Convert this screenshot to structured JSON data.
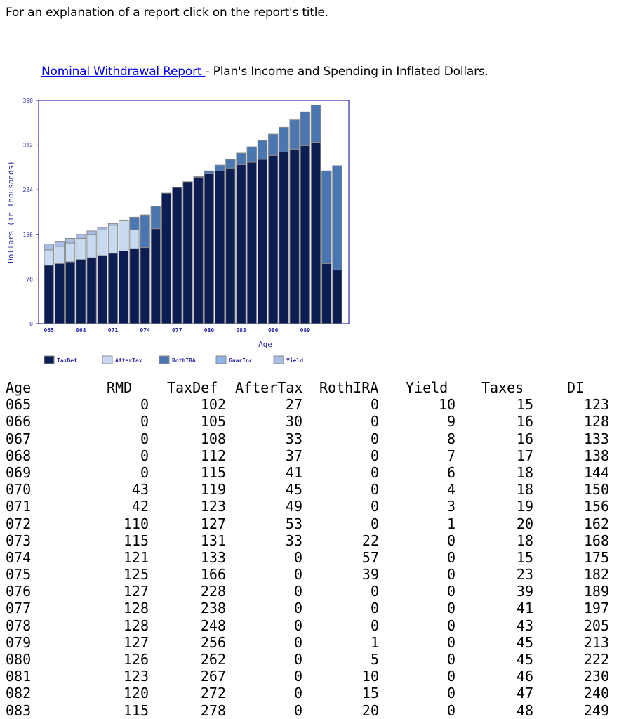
{
  "intro": "For an explanation of a report click on the report's title.",
  "report": {
    "link_label": "Nominal Withdrawal Report ",
    "description": "- Plan's Income and Spending in Inflated Dollars."
  },
  "colors": {
    "TaxDef": "#0b1d52",
    "AfterTax": "#c8daf0",
    "RothIRA": "#4a77b2",
    "GuarInc": "#8fb4ea",
    "Yield": "#a9bde9",
    "axis": "#2a2aa8"
  },
  "chart_data": {
    "type": "bar",
    "stacked": true,
    "xlabel": "Age",
    "ylabel": "Dollars (in Thousands)",
    "ylim": [
      0,
      390
    ],
    "yticks": [
      "0",
      "78",
      "156",
      "234",
      "312",
      "390"
    ],
    "xticks": [
      "065",
      "068",
      "071",
      "074",
      "077",
      "080",
      "083",
      "086",
      "089"
    ],
    "legend_position": "bottom",
    "categories": [
      "065",
      "066",
      "067",
      "068",
      "069",
      "070",
      "071",
      "072",
      "073",
      "074",
      "075",
      "076",
      "077",
      "078",
      "079",
      "080",
      "081",
      "082",
      "083",
      "084",
      "085",
      "086",
      "087",
      "088",
      "089",
      "090",
      "091",
      "092"
    ],
    "series": [
      {
        "name": "TaxDef",
        "values": [
          102,
          105,
          108,
          112,
          115,
          119,
          123,
          127,
          131,
          133,
          166,
          228,
          238,
          248,
          256,
          262,
          267,
          272,
          278,
          282,
          287,
          294,
          300,
          305,
          311,
          317,
          105,
          94
        ]
      },
      {
        "name": "AfterTax",
        "values": [
          27,
          30,
          33,
          37,
          41,
          45,
          49,
          53,
          33,
          0,
          0,
          0,
          0,
          0,
          0,
          0,
          0,
          0,
          0,
          0,
          0,
          0,
          0,
          0,
          0,
          0,
          0,
          0
        ]
      },
      {
        "name": "RothIRA",
        "values": [
          0,
          0,
          0,
          0,
          0,
          0,
          0,
          0,
          22,
          57,
          39,
          0,
          0,
          0,
          1,
          5,
          10,
          15,
          20,
          27,
          33,
          37,
          43,
          51,
          59,
          65,
          162,
          182
        ]
      },
      {
        "name": "GuarInc",
        "values": [
          0,
          0,
          0,
          0,
          0,
          0,
          0,
          0,
          0,
          0,
          0,
          0,
          0,
          0,
          0,
          0,
          0,
          0,
          0,
          0,
          0,
          0,
          0,
          0,
          0,
          0,
          0,
          0
        ]
      },
      {
        "name": "Yield",
        "values": [
          10,
          9,
          8,
          7,
          6,
          4,
          3,
          1,
          0,
          0,
          0,
          0,
          0,
          0,
          0,
          0,
          0,
          0,
          0,
          0,
          0,
          0,
          0,
          0,
          0,
          0,
          0,
          0
        ]
      }
    ]
  },
  "table": {
    "headers": [
      "Age",
      "RMD",
      "TaxDef",
      "AfterTax",
      "RothIRA",
      "Yield",
      "Taxes",
      "DI"
    ],
    "rows": [
      [
        "065",
        "0",
        "102",
        "27",
        "0",
        "10",
        "15",
        "123"
      ],
      [
        "066",
        "0",
        "105",
        "30",
        "0",
        "9",
        "16",
        "128"
      ],
      [
        "067",
        "0",
        "108",
        "33",
        "0",
        "8",
        "16",
        "133"
      ],
      [
        "068",
        "0",
        "112",
        "37",
        "0",
        "7",
        "17",
        "138"
      ],
      [
        "069",
        "0",
        "115",
        "41",
        "0",
        "6",
        "18",
        "144"
      ],
      [
        "070",
        "43",
        "119",
        "45",
        "0",
        "4",
        "18",
        "150"
      ],
      [
        "071",
        "42",
        "123",
        "49",
        "0",
        "3",
        "19",
        "156"
      ],
      [
        "072",
        "110",
        "127",
        "53",
        "0",
        "1",
        "20",
        "162"
      ],
      [
        "073",
        "115",
        "131",
        "33",
        "22",
        "0",
        "18",
        "168"
      ],
      [
        "074",
        "121",
        "133",
        "0",
        "57",
        "0",
        "15",
        "175"
      ],
      [
        "075",
        "125",
        "166",
        "0",
        "39",
        "0",
        "23",
        "182"
      ],
      [
        "076",
        "127",
        "228",
        "0",
        "0",
        "0",
        "39",
        "189"
      ],
      [
        "077",
        "128",
        "238",
        "0",
        "0",
        "0",
        "41",
        "197"
      ],
      [
        "078",
        "128",
        "248",
        "0",
        "0",
        "0",
        "43",
        "205"
      ],
      [
        "079",
        "127",
        "256",
        "0",
        "1",
        "0",
        "45",
        "213"
      ],
      [
        "080",
        "126",
        "262",
        "0",
        "5",
        "0",
        "45",
        "222"
      ],
      [
        "081",
        "123",
        "267",
        "0",
        "10",
        "0",
        "46",
        "230"
      ],
      [
        "082",
        "120",
        "272",
        "0",
        "15",
        "0",
        "47",
        "240"
      ],
      [
        "083",
        "115",
        "278",
        "0",
        "20",
        "0",
        "48",
        "249"
      ]
    ]
  }
}
